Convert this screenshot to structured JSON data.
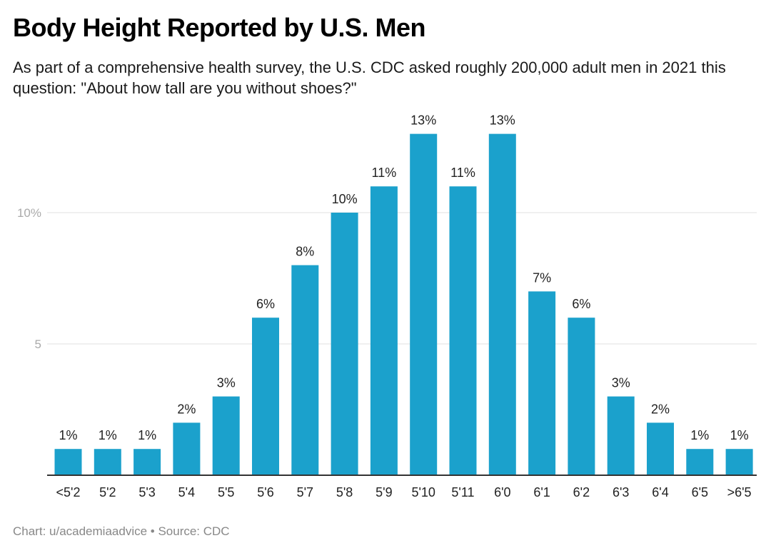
{
  "title": "Body Height Reported by U.S. Men",
  "subtitle": "As part of a comprehensive health survey, the U.S. CDC asked roughly 200,000 adult men in 2021 this question: \"About how tall are you without shoes?\"",
  "footer": "Chart: u/academiaadvice • Source: CDC",
  "chart_data": {
    "type": "bar",
    "categories": [
      "<5'2",
      "5'2",
      "5'3",
      "5'4",
      "5'5",
      "5'6",
      "5'7",
      "5'8",
      "5'9",
      "5'10",
      "5'11",
      "6'0",
      "6'1",
      "6'2",
      "6'3",
      "6'4",
      "6'5",
      ">6'5"
    ],
    "values": [
      1,
      1,
      1,
      2,
      3,
      6,
      8,
      10,
      11,
      13,
      11,
      13,
      7,
      6,
      3,
      2,
      1,
      1
    ],
    "data_labels": [
      "1%",
      "1%",
      "1%",
      "2%",
      "3%",
      "6%",
      "8%",
      "10%",
      "11%",
      "13%",
      "11%",
      "13%",
      "7%",
      "6%",
      "3%",
      "2%",
      "1%",
      "1%"
    ],
    "yticks": [
      {
        "value": 5,
        "label": "5"
      },
      {
        "value": 10,
        "label": "10%"
      }
    ],
    "ylim": [
      0,
      13
    ],
    "grid": true,
    "bar_color": "#1ba1cc",
    "xlabel": "",
    "ylabel": ""
  }
}
